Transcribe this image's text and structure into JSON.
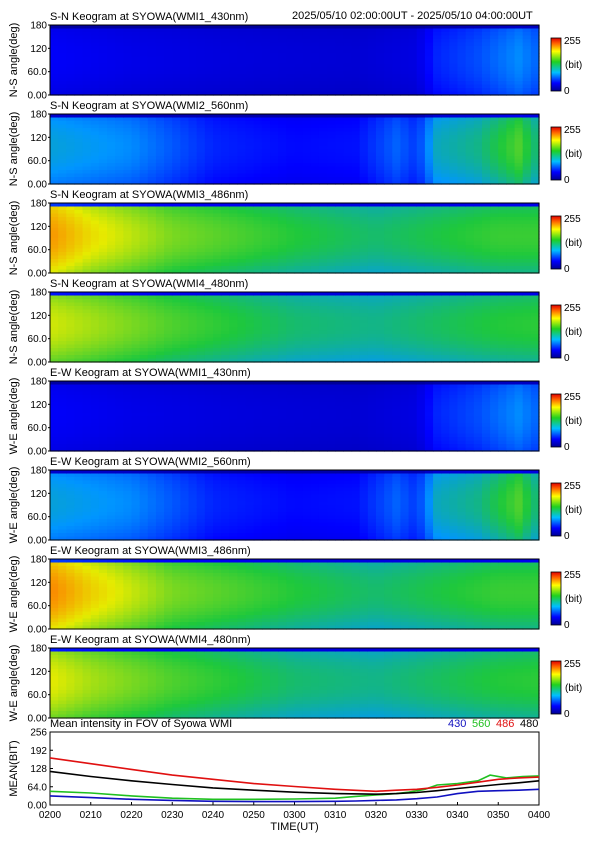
{
  "page_title": "S-N Keogram at SYOWA(WMI1_430nm)",
  "date_range": "2025/05/10 02:00:00UT - 2025/05/10 04:00:00UT",
  "colorbar": {
    "max_label": "255",
    "unit_label": "(bit)",
    "min_label": "0"
  },
  "chart_data": [
    {
      "type": "heatmap",
      "title": "S-N Keogram at SYOWA(WMI1_430nm)",
      "ylabel": "N-S angle(deg)",
      "ylim": [
        0,
        180
      ],
      "yticks": [
        "180",
        "120",
        "60.0",
        "0.00"
      ],
      "xlim": [
        "02:00",
        "04:00"
      ],
      "colorbar": {
        "min": 0,
        "max": 255,
        "unit": "(bit)"
      },
      "intensity_profile": {
        "t_min": [
          0,
          20,
          40,
          60,
          75,
          90,
          95,
          105,
          115,
          120
        ],
        "value": [
          35,
          30,
          27,
          25,
          24,
          28,
          45,
          55,
          70,
          60
        ]
      }
    },
    {
      "type": "heatmap",
      "title": "S-N Keogram at SYOWA(WMI2_560nm)",
      "ylabel": "N-S angle(deg)",
      "ylim": [
        0,
        180
      ],
      "yticks": [
        "180",
        "120",
        "60.0",
        "0.00"
      ],
      "xlim": [
        "02:00",
        "04:00"
      ],
      "colorbar": {
        "min": 0,
        "max": 255,
        "unit": "(bit)"
      },
      "intensity_profile": {
        "t_min": [
          0,
          20,
          40,
          60,
          75,
          85,
          90,
          95,
          105,
          115,
          120
        ],
        "value": [
          80,
          70,
          45,
          38,
          40,
          60,
          50,
          85,
          95,
          120,
          95
        ]
      }
    },
    {
      "type": "heatmap",
      "title": "S-N Keogram at SYOWA(WMI3_486nm)",
      "ylabel": "N-S angle(deg)",
      "ylim": [
        0,
        180
      ],
      "yticks": [
        "180",
        "120",
        "60.0",
        "0.00"
      ],
      "xlim": [
        "02:00",
        "04:00"
      ],
      "colorbar": {
        "min": 0,
        "max": 255,
        "unit": "(bit)"
      },
      "intensity_profile": {
        "t_min": [
          0,
          10,
          30,
          60,
          80,
          90,
          100,
          110,
          120
        ],
        "value": [
          185,
          160,
          130,
          110,
          100,
          105,
          110,
          115,
          115
        ]
      }
    },
    {
      "type": "heatmap",
      "title": "S-N Keogram at SYOWA(WMI4_480nm)",
      "ylabel": "N-S angle(deg)",
      "ylim": [
        0,
        180
      ],
      "yticks": [
        "180",
        "120",
        "60.0",
        "0.00"
      ],
      "xlim": [
        "02:00",
        "04:00"
      ],
      "colorbar": {
        "min": 0,
        "max": 255,
        "unit": "(bit)"
      },
      "intensity_profile": {
        "t_min": [
          0,
          10,
          30,
          60,
          80,
          90,
          100,
          110,
          120
        ],
        "value": [
          150,
          140,
          120,
          100,
          95,
          100,
          105,
          110,
          112
        ]
      }
    },
    {
      "type": "heatmap",
      "title": "E-W Keogram at SYOWA(WMI1_430nm)",
      "ylabel": "W-E angle(deg)",
      "ylim": [
        0,
        180
      ],
      "yticks": [
        "180",
        "120",
        "60.0",
        "0.00"
      ],
      "xlim": [
        "02:00",
        "04:00"
      ],
      "colorbar": {
        "min": 0,
        "max": 255,
        "unit": "(bit)"
      },
      "intensity_profile": {
        "t_min": [
          0,
          20,
          40,
          60,
          75,
          90,
          95,
          105,
          115,
          120
        ],
        "value": [
          35,
          30,
          27,
          25,
          24,
          28,
          45,
          55,
          70,
          60
        ]
      }
    },
    {
      "type": "heatmap",
      "title": "E-W Keogram at SYOWA(WMI2_560nm)",
      "ylabel": "W-E angle(deg)",
      "ylim": [
        0,
        180
      ],
      "yticks": [
        "180",
        "120",
        "60.0",
        "0.00"
      ],
      "xlim": [
        "02:00",
        "04:00"
      ],
      "colorbar": {
        "min": 0,
        "max": 255,
        "unit": "(bit)"
      },
      "intensity_profile": {
        "t_min": [
          0,
          20,
          40,
          60,
          75,
          85,
          90,
          95,
          105,
          115,
          120
        ],
        "value": [
          80,
          70,
          45,
          38,
          40,
          60,
          50,
          85,
          95,
          120,
          95
        ]
      }
    },
    {
      "type": "heatmap",
      "title": "E-W Keogram at SYOWA(WMI3_486nm)",
      "ylabel": "W-E angle(deg)",
      "ylim": [
        0,
        180
      ],
      "yticks": [
        "180",
        "120",
        "60.0",
        "0.00"
      ],
      "xlim": [
        "02:00",
        "04:00"
      ],
      "colorbar": {
        "min": 0,
        "max": 255,
        "unit": "(bit)"
      },
      "intensity_profile": {
        "t_min": [
          0,
          10,
          30,
          60,
          80,
          90,
          100,
          110,
          120
        ],
        "value": [
          190,
          165,
          130,
          110,
          100,
          105,
          110,
          115,
          115
        ]
      }
    },
    {
      "type": "heatmap",
      "title": "E-W Keogram at SYOWA(WMI4_480nm)",
      "ylabel": "W-E angle(deg)",
      "ylim": [
        0,
        180
      ],
      "yticks": [
        "180",
        "120",
        "60.0",
        "0.00"
      ],
      "xlim": [
        "02:00",
        "04:00"
      ],
      "colorbar": {
        "min": 0,
        "max": 255,
        "unit": "(bit)"
      },
      "intensity_profile": {
        "t_min": [
          0,
          10,
          30,
          60,
          80,
          90,
          100,
          110,
          120
        ],
        "value": [
          155,
          140,
          120,
          100,
          95,
          100,
          105,
          110,
          112
        ]
      }
    },
    {
      "type": "line",
      "title": "Mean intensity in FOV of Syowa WMI",
      "xlabel": "TIME(UT)",
      "ylabel": "MEAN(BIT)",
      "ylim": [
        0,
        256
      ],
      "yticks": [
        "256",
        "192",
        "128",
        "64.0",
        "0.00"
      ],
      "xlim": [
        0,
        120
      ],
      "xticks": [
        "0200",
        "0210",
        "0220",
        "0230",
        "0240",
        "0250",
        "0300",
        "0310",
        "0320",
        "0330",
        "0340",
        "0350",
        "0400"
      ],
      "series": [
        {
          "name": "430",
          "color": "#1010c0",
          "x": [
            0,
            10,
            20,
            30,
            40,
            50,
            60,
            70,
            75,
            80,
            85,
            90,
            95,
            100,
            105,
            110,
            115,
            120
          ],
          "y": [
            32,
            26,
            20,
            16,
            13,
            12,
            12,
            13,
            14,
            16,
            18,
            22,
            28,
            40,
            48,
            50,
            52,
            55
          ]
        },
        {
          "name": "560",
          "color": "#20c020",
          "x": [
            0,
            10,
            20,
            30,
            40,
            50,
            60,
            70,
            75,
            80,
            85,
            88,
            92,
            95,
            100,
            105,
            108,
            112,
            116,
            120
          ],
          "y": [
            48,
            42,
            32,
            24,
            20,
            20,
            21,
            24,
            30,
            35,
            40,
            45,
            55,
            70,
            75,
            85,
            105,
            95,
            100,
            102
          ]
        },
        {
          "name": "486",
          "color": "#e01010",
          "x": [
            0,
            10,
            20,
            30,
            40,
            50,
            60,
            70,
            80,
            85,
            90,
            95,
            100,
            105,
            110,
            115,
            120
          ],
          "y": [
            165,
            145,
            125,
            105,
            90,
            75,
            65,
            55,
            48,
            52,
            55,
            62,
            70,
            80,
            90,
            95,
            98
          ]
        },
        {
          "name": "480",
          "color": "#000000",
          "x": [
            0,
            10,
            20,
            30,
            40,
            50,
            60,
            70,
            80,
            85,
            90,
            95,
            100,
            105,
            110,
            115,
            120
          ],
          "y": [
            118,
            100,
            85,
            72,
            60,
            52,
            45,
            40,
            38,
            40,
            44,
            50,
            58,
            65,
            72,
            78,
            85
          ]
        }
      ]
    }
  ]
}
